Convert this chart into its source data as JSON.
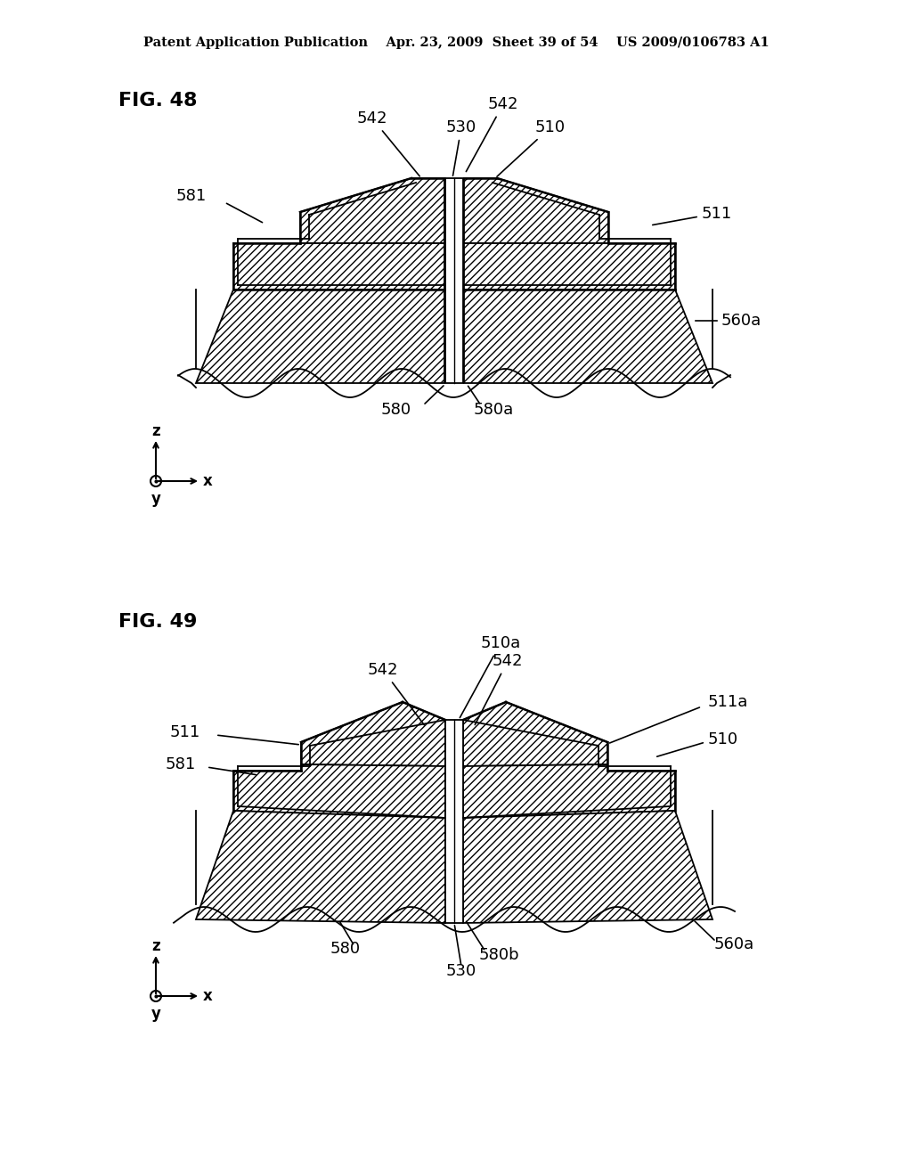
{
  "fig_width": 10.24,
  "fig_height": 13.2,
  "bg_color": "#ffffff",
  "header_text": "Patent Application Publication    Apr. 23, 2009  Sheet 39 of 54    US 2009/0106783 A1",
  "header_fontsize": 10.5,
  "fig48_label": "FIG. 48",
  "fig49_label": "FIG. 49",
  "label_fontsize": 16,
  "ann_fontsize": 13
}
